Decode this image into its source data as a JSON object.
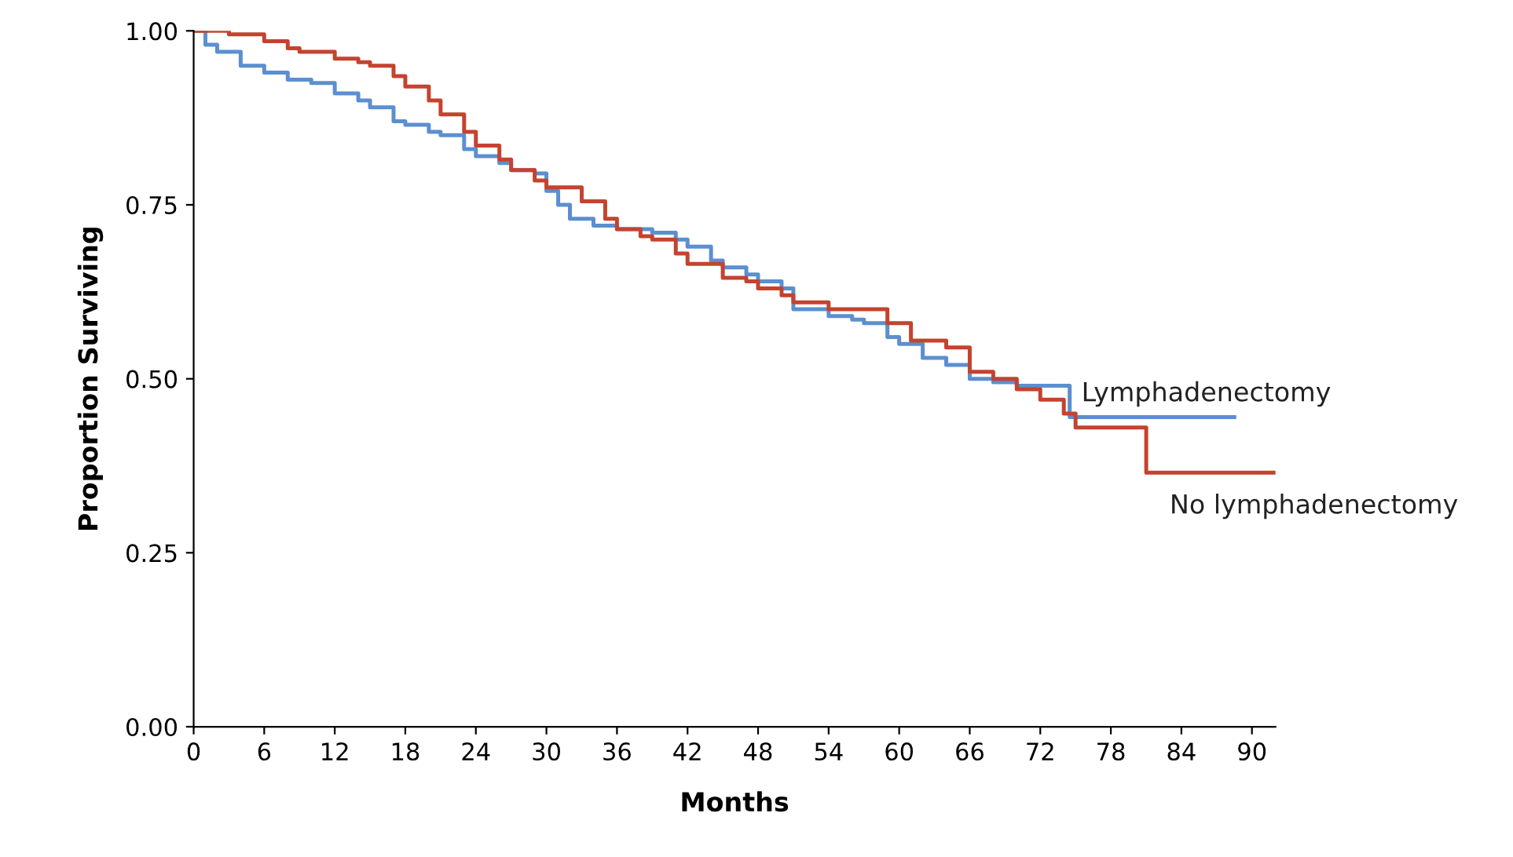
{
  "chart_data": {
    "type": "step",
    "xlabel": "Months",
    "ylabel": "Proportion Surviving",
    "xlim": [
      0,
      92
    ],
    "ylim": [
      0,
      1
    ],
    "xticks": [
      0,
      6,
      12,
      18,
      24,
      30,
      36,
      42,
      48,
      54,
      60,
      66,
      72,
      78,
      84,
      90
    ],
    "yticks": [
      {
        "value": 0,
        "label": "0.00"
      },
      {
        "value": 0.25,
        "label": "0.25"
      },
      {
        "value": 0.5,
        "label": "0.50"
      },
      {
        "value": 0.75,
        "label": "0.75"
      },
      {
        "value": 1,
        "label": "1.00"
      }
    ],
    "grid": false,
    "legend": false,
    "marker": "none",
    "line_style": "solid",
    "series": [
      {
        "name": "Lymphadenectomy",
        "color": "#5b8fd0",
        "x": [
          0,
          1,
          2,
          4,
          6,
          8,
          10,
          12,
          14,
          15,
          17,
          18,
          20,
          21,
          23,
          24,
          26,
          27,
          29,
          30,
          31,
          32,
          34,
          36,
          39,
          41,
          42,
          44,
          45,
          47,
          48,
          50,
          51,
          53,
          54,
          56,
          57,
          59,
          60,
          62,
          64,
          66,
          68,
          70,
          72,
          74,
          74.5,
          88.5
        ],
        "values": [
          1.0,
          0.98,
          0.97,
          0.95,
          0.94,
          0.93,
          0.925,
          0.91,
          0.9,
          0.89,
          0.87,
          0.865,
          0.855,
          0.85,
          0.83,
          0.82,
          0.81,
          0.8,
          0.795,
          0.77,
          0.75,
          0.73,
          0.72,
          0.715,
          0.71,
          0.7,
          0.69,
          0.67,
          0.66,
          0.65,
          0.64,
          0.63,
          0.6,
          0.6,
          0.59,
          0.585,
          0.58,
          0.56,
          0.55,
          0.53,
          0.52,
          0.5,
          0.495,
          0.49,
          0.49,
          0.49,
          0.445,
          0.445
        ]
      },
      {
        "name": "No lymphadenectomy",
        "color": "#c4432f",
        "x": [
          0,
          3,
          6,
          8,
          9,
          12,
          14,
          15,
          17,
          18,
          20,
          21,
          23,
          24,
          26,
          27,
          29,
          30,
          33,
          35,
          36,
          38,
          39,
          41,
          42,
          45,
          47,
          48,
          50,
          51,
          54,
          57,
          59,
          61,
          64,
          66,
          68,
          70,
          72,
          74,
          75,
          81,
          81.01,
          92
        ],
        "values": [
          1.0,
          0.995,
          0.985,
          0.975,
          0.97,
          0.96,
          0.955,
          0.95,
          0.935,
          0.92,
          0.9,
          0.88,
          0.855,
          0.835,
          0.815,
          0.8,
          0.785,
          0.775,
          0.755,
          0.73,
          0.715,
          0.705,
          0.7,
          0.68,
          0.665,
          0.645,
          0.64,
          0.63,
          0.62,
          0.61,
          0.6,
          0.6,
          0.58,
          0.555,
          0.545,
          0.51,
          0.5,
          0.485,
          0.47,
          0.45,
          0.43,
          0.43,
          0.365,
          0.365
        ]
      }
    ]
  }
}
